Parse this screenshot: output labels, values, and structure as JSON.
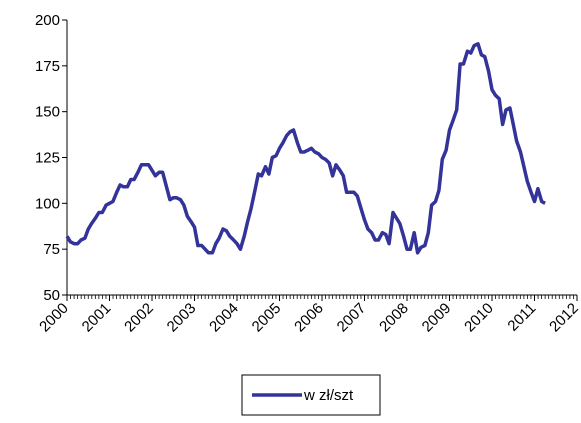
{
  "chart_data": {
    "type": "line",
    "x": [
      2000.0,
      2000.08,
      2000.17,
      2000.25,
      2000.33,
      2000.42,
      2000.5,
      2000.58,
      2000.67,
      2000.75,
      2000.83,
      2000.92,
      2001.0,
      2001.08,
      2001.17,
      2001.25,
      2001.33,
      2001.42,
      2001.5,
      2001.58,
      2001.67,
      2001.75,
      2001.83,
      2001.92,
      2002.0,
      2002.08,
      2002.17,
      2002.25,
      2002.33,
      2002.42,
      2002.5,
      2002.58,
      2002.67,
      2002.75,
      2002.83,
      2002.92,
      2003.0,
      2003.08,
      2003.17,
      2003.25,
      2003.33,
      2003.42,
      2003.5,
      2003.58,
      2003.67,
      2003.75,
      2003.83,
      2003.92,
      2004.0,
      2004.08,
      2004.17,
      2004.25,
      2004.33,
      2004.42,
      2004.5,
      2004.58,
      2004.67,
      2004.75,
      2004.83,
      2004.92,
      2005.0,
      2005.08,
      2005.17,
      2005.25,
      2005.33,
      2005.42,
      2005.5,
      2005.58,
      2005.67,
      2005.75,
      2005.83,
      2005.92,
      2006.0,
      2006.08,
      2006.17,
      2006.25,
      2006.33,
      2006.42,
      2006.5,
      2006.58,
      2006.67,
      2006.75,
      2006.83,
      2006.92,
      2007.0,
      2007.08,
      2007.17,
      2007.25,
      2007.33,
      2007.42,
      2007.5,
      2007.58,
      2007.67,
      2007.75,
      2007.83,
      2007.92,
      2008.0,
      2008.08,
      2008.17,
      2008.25,
      2008.33,
      2008.42,
      2008.5,
      2008.58,
      2008.67,
      2008.75,
      2008.83,
      2008.92,
      2009.0,
      2009.08,
      2009.17,
      2009.25,
      2009.33,
      2009.42,
      2009.5,
      2009.58,
      2009.67,
      2009.75,
      2009.83,
      2009.92,
      2010.0,
      2010.08,
      2010.17,
      2010.25,
      2010.33,
      2010.42,
      2010.5,
      2010.58,
      2010.67,
      2010.75,
      2010.83,
      2010.92,
      2011.0,
      2011.08,
      2011.17,
      2011.25
    ],
    "series": [
      {
        "name": "w zł/szt",
        "color": "#333399",
        "values": [
          82,
          79,
          78,
          78,
          80,
          81,
          86,
          89,
          92,
          95,
          95,
          99,
          100,
          101,
          106,
          110,
          109,
          109,
          113,
          113,
          117,
          121,
          121,
          121,
          118,
          115,
          117,
          117,
          110,
          102,
          103,
          103,
          102,
          99,
          93,
          90,
          87,
          77,
          77,
          75,
          73,
          73,
          78,
          81,
          86,
          85,
          82,
          80,
          78,
          75,
          82,
          90,
          97,
          107,
          116,
          115,
          120,
          116,
          125,
          126,
          130,
          133,
          137,
          139,
          140,
          133,
          128,
          128,
          129,
          130,
          128,
          127,
          125,
          124,
          122,
          115,
          121,
          118,
          115,
          106,
          106,
          106,
          104,
          97,
          91,
          86,
          84,
          80,
          80,
          84,
          83,
          78,
          95,
          92,
          89,
          82,
          75,
          75,
          84,
          73,
          76,
          77,
          84,
          99,
          101,
          107,
          124,
          129,
          140,
          145,
          151,
          176,
          176,
          183,
          182,
          186,
          187,
          181,
          180,
          172,
          162,
          159,
          157,
          143,
          151,
          152,
          143,
          134,
          128,
          120,
          112,
          106,
          101,
          108,
          101,
          100
        ]
      }
    ],
    "xlim": [
      2000,
      2012
    ],
    "xticks": [
      2000,
      2001,
      2002,
      2003,
      2004,
      2005,
      2006,
      2007,
      2008,
      2009,
      2010,
      2011,
      2012
    ],
    "ylim": [
      50,
      200
    ],
    "yticks": [
      50,
      75,
      100,
      125,
      150,
      175,
      200
    ],
    "grid": false,
    "legend": "bottom"
  }
}
